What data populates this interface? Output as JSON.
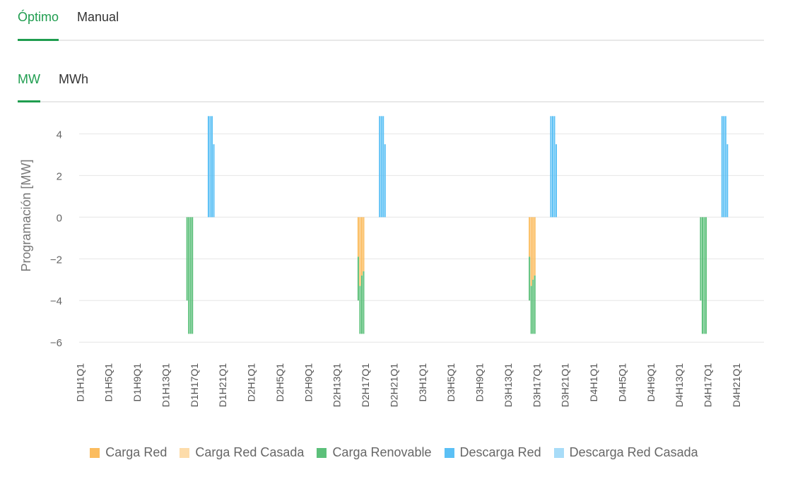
{
  "tabs": [
    {
      "label": "Óptimo",
      "active": true
    },
    {
      "label": "Manual",
      "active": false
    }
  ],
  "subtabs": [
    {
      "label": "MW",
      "active": true
    },
    {
      "label": "MWh",
      "active": false
    }
  ],
  "chart_data": {
    "type": "bar",
    "stacked": true,
    "ylabel": "Programación [MW]",
    "ylim": [
      -6.4,
      5.2
    ],
    "yticks": [
      4,
      2,
      0,
      -2,
      -4,
      -6
    ],
    "ytick_labels": [
      "4",
      "2",
      "0",
      "−2",
      "−4",
      "−6"
    ],
    "grid": true,
    "legend_position": "bottom-center",
    "x_tick_labels": [
      "D1H1Q1",
      "D1H5Q1",
      "D1H9Q1",
      "D1H13Q1",
      "D1H17Q1",
      "D1H21Q1",
      "D2H1Q1",
      "D2H5Q1",
      "D2H9Q1",
      "D2H13Q1",
      "D2H17Q1",
      "D2H21Q1",
      "D3H1Q1",
      "D3H5Q1",
      "D3H9Q1",
      "D3H13Q1",
      "D3H17Q1",
      "D3H21Q1",
      "D4H1Q1",
      "D4H5Q1",
      "D4H9Q1",
      "D4H13Q1",
      "D4H17Q1",
      "D4H21Q1"
    ],
    "series": [
      {
        "name": "Carga Red",
        "color": "#fbbc5e"
      },
      {
        "name": "Carga Red Casada",
        "color": "#fddcaa"
      },
      {
        "name": "Carga Renovable",
        "color": "#5cc07a"
      },
      {
        "name": "Descarga Red",
        "color": "#5bc0f5"
      },
      {
        "name": "Descarga Red Casada",
        "color": "#a8dcf8"
      }
    ],
    "periods": [
      {
        "interval": "D1H16Q1",
        "Carga Renovable": -4.0
      },
      {
        "interval": "D1H16Q2",
        "Carga Renovable": -5.6
      },
      {
        "interval": "D1H16Q3",
        "Carga Renovable": -5.6
      },
      {
        "interval": "D1H16Q4",
        "Carga Renovable": -5.6
      },
      {
        "interval": "D1H19Q1",
        "Descarga Red": 4.85
      },
      {
        "interval": "D1H19Q2",
        "Descarga Red": 4.85
      },
      {
        "interval": "D1H19Q3",
        "Descarga Red": 4.85
      },
      {
        "interval": "D1H19Q4",
        "Descarga Red": 3.5
      },
      {
        "interval": "D2H16Q1",
        "Carga Renovable": -2.1,
        "Carga Red": -1.9
      },
      {
        "interval": "D2H16Q2",
        "Carga Renovable": -2.3,
        "Carga Red": -3.3
      },
      {
        "interval": "D2H16Q3",
        "Carga Renovable": -2.8,
        "Carga Red": -2.8
      },
      {
        "interval": "D2H16Q4",
        "Carga Renovable": -3.0,
        "Carga Red": -2.6
      },
      {
        "interval": "D2H19Q1",
        "Descarga Red": 4.85
      },
      {
        "interval": "D2H19Q2",
        "Descarga Red": 4.85
      },
      {
        "interval": "D2H19Q3",
        "Descarga Red": 4.85
      },
      {
        "interval": "D2H19Q4",
        "Descarga Red": 3.5
      },
      {
        "interval": "D3H16Q1",
        "Carga Renovable": -2.1,
        "Carga Red": -1.9
      },
      {
        "interval": "D3H16Q2",
        "Carga Renovable": -2.3,
        "Carga Red": -3.3
      },
      {
        "interval": "D3H16Q3",
        "Carga Renovable": -2.6,
        "Carga Red": -3.0
      },
      {
        "interval": "D3H16Q4",
        "Carga Renovable": -2.8,
        "Carga Red": -2.8
      },
      {
        "interval": "D3H19Q1",
        "Descarga Red": 4.85
      },
      {
        "interval": "D3H19Q2",
        "Descarga Red": 4.85
      },
      {
        "interval": "D3H19Q3",
        "Descarga Red": 4.85
      },
      {
        "interval": "D3H19Q4",
        "Descarga Red": 3.5
      },
      {
        "interval": "D4H16Q1",
        "Carga Renovable": -4.0
      },
      {
        "interval": "D4H16Q2",
        "Carga Renovable": -5.6
      },
      {
        "interval": "D4H16Q3",
        "Carga Renovable": -5.6
      },
      {
        "interval": "D4H16Q4",
        "Carga Renovable": -5.6
      },
      {
        "interval": "D4H19Q1",
        "Descarga Red": 4.85
      },
      {
        "interval": "D4H19Q2",
        "Descarga Red": 4.85
      },
      {
        "interval": "D4H19Q3",
        "Descarga Red": 4.85
      },
      {
        "interval": "D4H19Q4",
        "Descarga Red": 3.5
      }
    ]
  }
}
